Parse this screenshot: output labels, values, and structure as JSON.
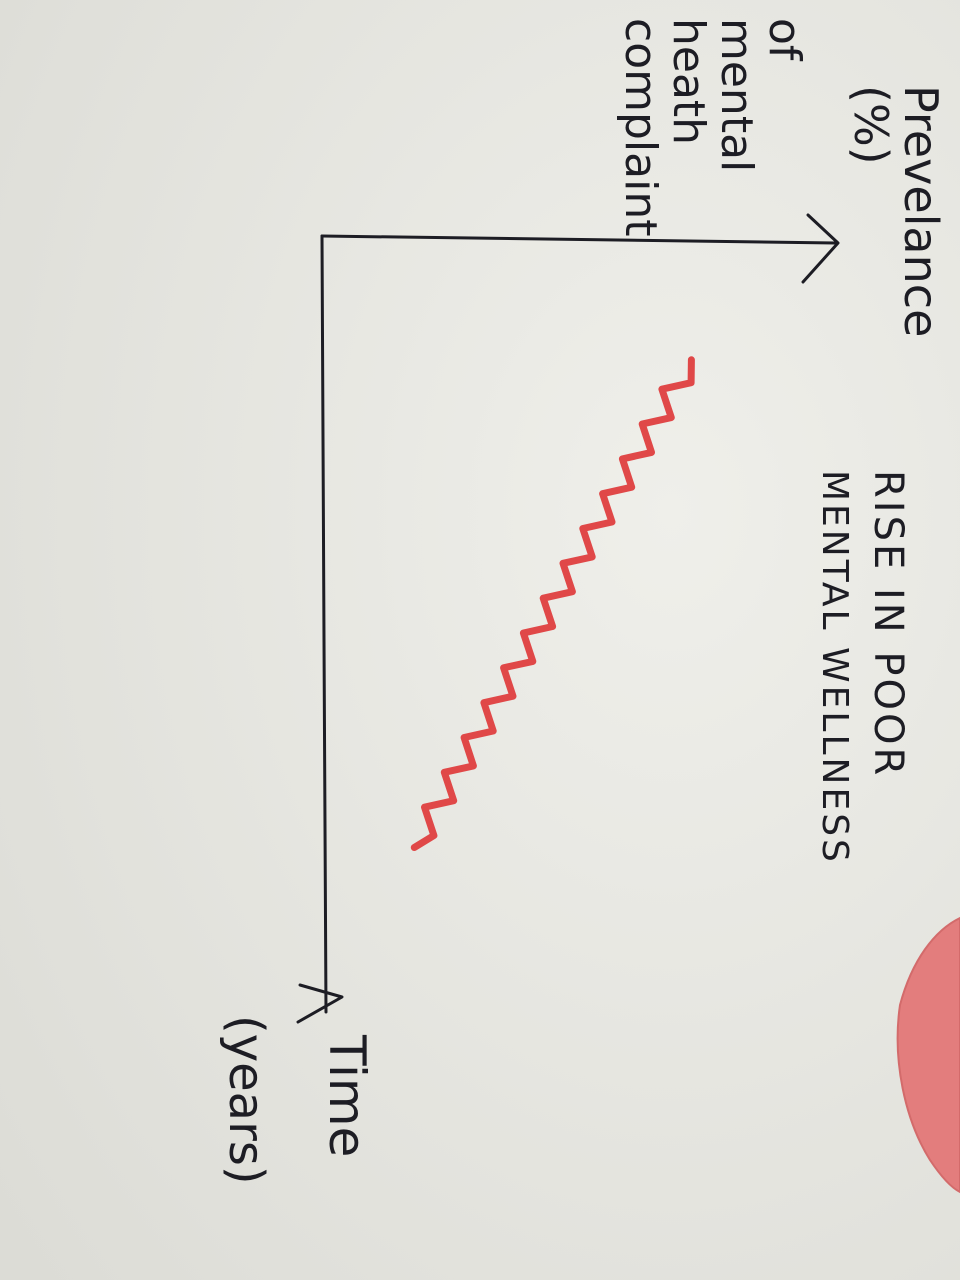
{
  "chart_data": {
    "type": "line",
    "title": "",
    "ylabel_lines": [
      "Prevelance",
      "(%)",
      "of",
      "mental",
      "heath",
      "complaint"
    ],
    "xlabel_lines": [
      "Time",
      "(years)"
    ],
    "annotation_lines": [
      "RISE IN POOR",
      "MENTAL WELLNESS"
    ],
    "xlim": [
      0,
      1
    ],
    "ylim": [
      0,
      1
    ],
    "grid": false,
    "series": [
      {
        "color": "#e04848",
        "trend": {
          "start": [
            0.16,
            0.28
          ],
          "end": [
            0.79,
            0.82
          ]
        },
        "zigzag_count": 28,
        "zigzag_amplitude": 0.012
      }
    ]
  },
  "colors": {
    "paper": "#e9e9e4",
    "ink": "#1d1d24",
    "line": "#e04848",
    "blob": "#e37d7d"
  }
}
